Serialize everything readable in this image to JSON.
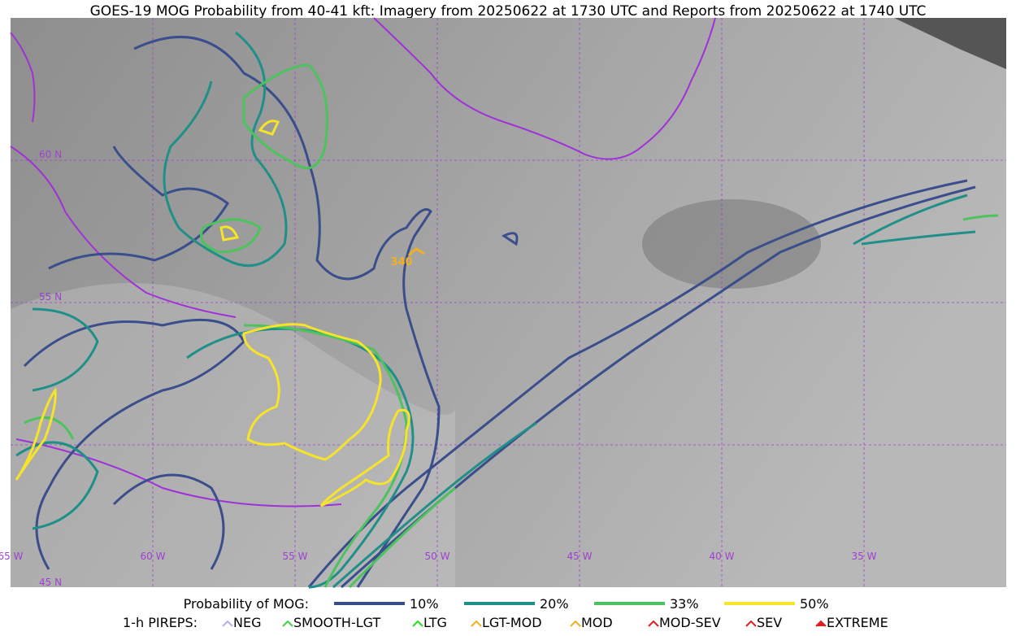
{
  "title": "GOES-19 MOG Probability from 40-41 kft: Imagery from 20250622 at 1730 UTC and Reports from 20250622 at 1740 UTC",
  "map": {
    "lat_labels": [
      "60 N",
      "55 N",
      "45 N"
    ],
    "lon_labels": [
      "65 W",
      "60 W",
      "55 W",
      "50 W",
      "45 W",
      "40 W",
      "35 W"
    ],
    "report_label": "340"
  },
  "legend": {
    "probability": {
      "label": "Probability of MOG:",
      "items": [
        "10%",
        "20%",
        "33%",
        "50%"
      ]
    },
    "pireps": {
      "label": "1-h PIREPS:",
      "items": [
        "NEG",
        "SMOOTH-LGT",
        "LTG",
        "LGT-MOD",
        "MOD",
        "MOD-SEV",
        "SEV",
        "EXTREME"
      ]
    }
  }
}
